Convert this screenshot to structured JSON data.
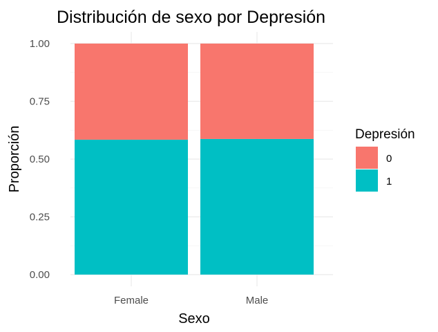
{
  "chart_data": {
    "type": "bar",
    "stacked": true,
    "title": "Distribución de sexo por Depresión",
    "xlabel": "Sexo",
    "ylabel": "Proporción",
    "categories": [
      "Female",
      "Male"
    ],
    "ylim": [
      0,
      1
    ],
    "yticks": [
      "0.00",
      "0.25",
      "0.50",
      "0.75",
      "1.00"
    ],
    "yticks_values": [
      0,
      0.25,
      0.5,
      0.75,
      1
    ],
    "grid": true,
    "legend": {
      "title": "Depresión",
      "placement": "right",
      "entries": [
        "0",
        "1"
      ]
    },
    "series": [
      {
        "name": "0",
        "color": "#F8766D",
        "values": [
          0.416,
          0.413
        ]
      },
      {
        "name": "1",
        "color": "#00BFC4",
        "values": [
          0.584,
          0.587
        ]
      }
    ]
  }
}
